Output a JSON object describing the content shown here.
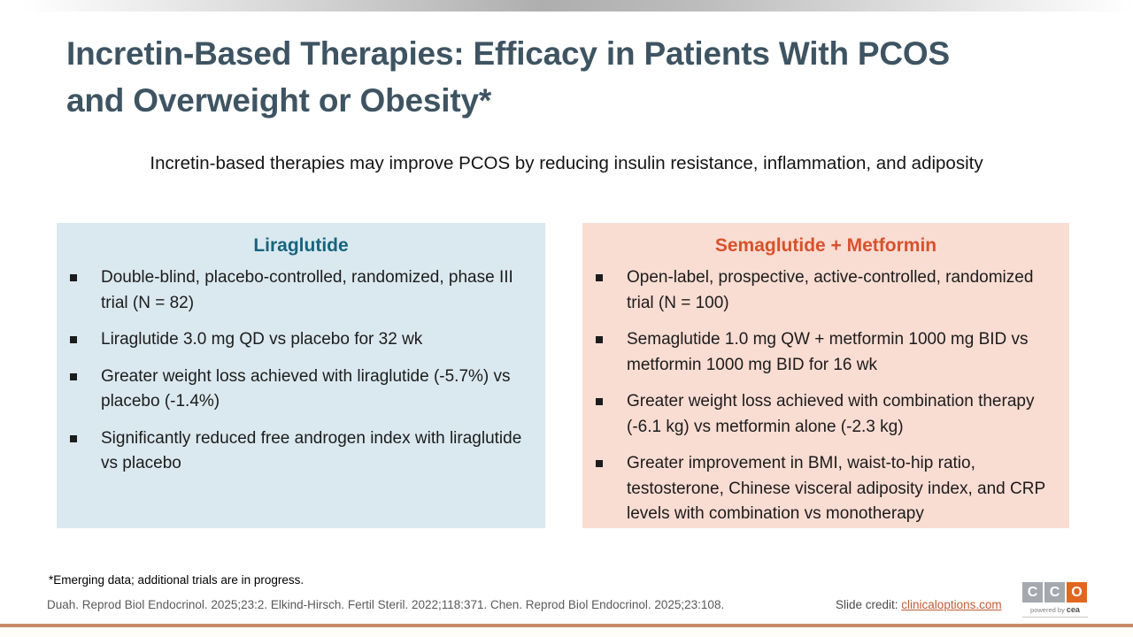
{
  "slide": {
    "title_line1": "Incretin-Based Therapies: Efficacy in Patients With PCOS",
    "title_line2": "and Overweight or Obesity*",
    "subtitle": "Incretin-based therapies may improve PCOS by reducing insulin resistance, inflammation, and adiposity"
  },
  "panels": [
    {
      "title": "Liraglutide",
      "accent_color": "#17647E",
      "background_color": "#DAE9EF",
      "bullets": [
        "Double-blind, placebo-controlled, randomized, phase III trial (N = 82)",
        "Liraglutide 3.0 mg QD vs placebo for 32 wk",
        "Greater weight loss achieved with liraglutide (-5.7%) vs placebo (-1.4%)",
        "Significantly reduced free androgen index with liraglutide vs placebo"
      ]
    },
    {
      "title": "Semaglutide + Metformin",
      "accent_color": "#D8512C",
      "background_color": "#F9DCD2",
      "bullets": [
        "Open-label, prospective, active-controlled, randomized trial (N = 100)",
        "Semaglutide 1.0 mg QW + metformin 1000 mg BID vs metformin 1000 mg BID for 16 wk",
        "Greater weight loss achieved with combination therapy (-6.1 kg) vs metformin alone (-2.3 kg)",
        "Greater improvement in BMI, waist-to-hip ratio, testosterone, Chinese visceral adiposity index, and CRP levels with combination vs monotherapy"
      ]
    }
  ],
  "footnote": "*Emerging data; additional trials are in progress.",
  "references": "Duah. Reprod Biol Endocrinol. 2025;23:2. Elkind-Hirsch. Fertil Steril. 2022;118:371. Chen. Reprod Biol Endocrinol. 2025;23:108.",
  "credit": {
    "label": "Slide credit: ",
    "link_text": "clinicaloptions.com"
  },
  "logo": {
    "letter1": "C",
    "letter2": "C",
    "letter3": "O",
    "tagline_prefix": "powered by ",
    "tagline_brand": "cea"
  },
  "colors": {
    "title_text": "#3E5462",
    "body_text": "#1C1C1C",
    "reference_text": "#595959",
    "credit_link": "#C25B33",
    "logo_gray": "#A5A8AC",
    "logo_orange": "#E2661F",
    "bottom_rule": "#C68B68"
  }
}
